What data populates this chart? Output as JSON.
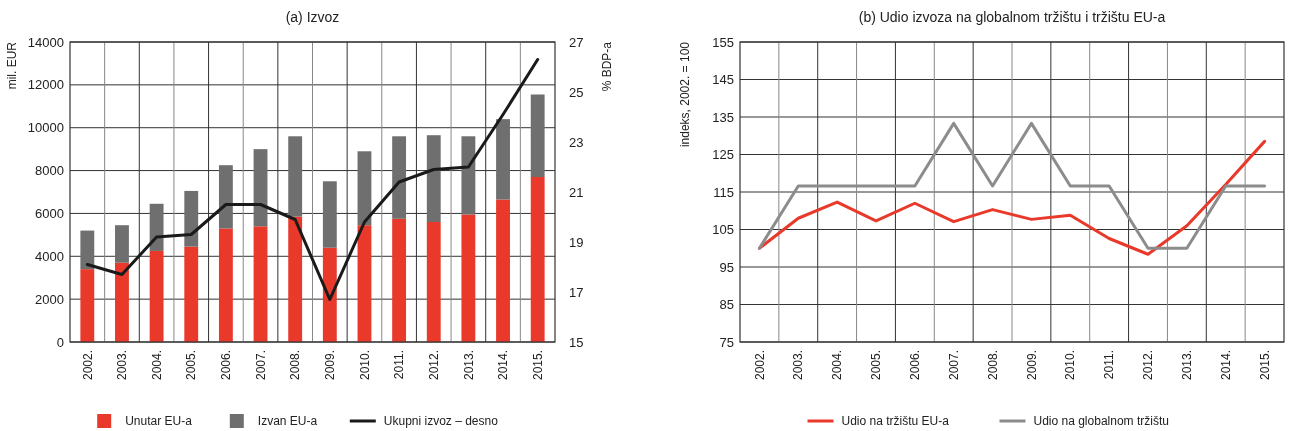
{
  "chart_data": [
    {
      "type": "bar",
      "title": "(a) Izvoz",
      "ylabel": "mil. EUR",
      "y2label": "% BDP-a",
      "categories": [
        "2002.",
        "2003.",
        "2004.",
        "2005.",
        "2006.",
        "2007.",
        "2008.",
        "2009.",
        "2010.",
        "2011.",
        "2012.",
        "2013.",
        "2014.",
        "2015."
      ],
      "stacked": true,
      "series": [
        {
          "name": "Unutar EU-a",
          "color": "#e8392b",
          "values": [
            3400,
            3700,
            4250,
            4450,
            5300,
            5400,
            5850,
            4400,
            5450,
            5750,
            5600,
            5950,
            6650,
            7700
          ]
        },
        {
          "name": "Izvan EU-a",
          "color": "#6f6f6f",
          "values": [
            1800,
            1750,
            2200,
            2600,
            2950,
            3600,
            3750,
            3100,
            3450,
            3850,
            4050,
            3650,
            3750,
            3850
          ]
        },
        {
          "name": "Ukupni izvoz – desno",
          "type": "line",
          "axis": "y2",
          "color": "#1a1a1a",
          "values": [
            18.1,
            17.7,
            19.2,
            19.3,
            20.5,
            20.5,
            19.9,
            16.7,
            19.8,
            21.4,
            21.9,
            22.0,
            24.1,
            26.3
          ]
        }
      ],
      "ylim": [
        0,
        14000
      ],
      "yticks": [
        0,
        2000,
        4000,
        6000,
        8000,
        10000,
        12000,
        14000
      ],
      "y2lim": [
        15,
        27
      ],
      "y2ticks": [
        15,
        17,
        19,
        21,
        23,
        25,
        27
      ],
      "grid": true,
      "legend": "bottom"
    },
    {
      "type": "line",
      "title": "(b) Udio izvoza na globalnom tržištu i tržištu EU-a",
      "ylabel": "indeks,  2002. = 100",
      "categories": [
        "2002.",
        "2003.",
        "2004.",
        "2005.",
        "2006.",
        "2007.",
        "2008.",
        "2009.",
        "2010.",
        "2011.",
        "2012.",
        "2013.",
        "2014.",
        "2015."
      ],
      "series": [
        {
          "name": "Udio na tržištu EU-a",
          "color": "#e8392b",
          "values": [
            100,
            108,
            112.3,
            107.3,
            112,
            107.1,
            110.3,
            107.7,
            108.8,
            102.6,
            98.4,
            106,
            117,
            128.5
          ]
        },
        {
          "name": "Udio na globalnom tržištu",
          "color": "#8c8c8c",
          "values": [
            100,
            116.6,
            116.6,
            116.6,
            116.6,
            133.3,
            116.6,
            133.3,
            116.6,
            116.6,
            100,
            100,
            116.6,
            116.6
          ]
        }
      ],
      "ylim": [
        75,
        155
      ],
      "yticks": [
        75,
        85,
        95,
        105,
        115,
        125,
        135,
        145,
        155
      ],
      "grid": true,
      "legend": "bottom"
    }
  ]
}
